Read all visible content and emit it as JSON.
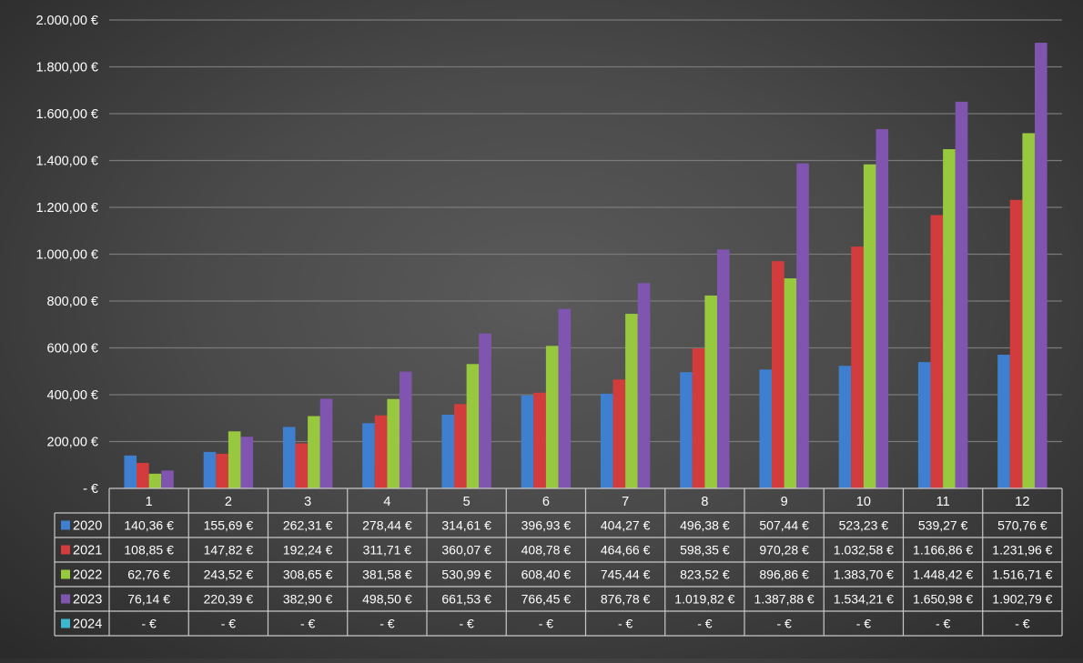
{
  "chart_data": {
    "type": "bar",
    "categories": [
      "1",
      "2",
      "3",
      "4",
      "5",
      "6",
      "7",
      "8",
      "9",
      "10",
      "11",
      "12"
    ],
    "ylim": [
      0,
      2000
    ],
    "y_ticks": [
      0,
      200,
      400,
      600,
      800,
      1000,
      1200,
      1400,
      1600,
      1800,
      2000
    ],
    "y_tick_labels": [
      "-  €",
      "200,00 €",
      "400,00 €",
      "600,00 €",
      "800,00 €",
      "1.000,00 €",
      "1.200,00 €",
      "1.400,00 €",
      "1.600,00 €",
      "1.800,00 €",
      "2.000,00 €"
    ],
    "grid": true,
    "legend_placement": "data-table",
    "series": [
      {
        "name": "2020",
        "color": "#3f7fcf",
        "values": [
          140.36,
          155.69,
          262.31,
          278.44,
          314.61,
          396.93,
          404.27,
          496.38,
          507.44,
          523.23,
          539.27,
          570.76
        ],
        "labels": [
          "140,36 €",
          "155,69 €",
          "262,31 €",
          "278,44 €",
          "314,61 €",
          "396,93 €",
          "404,27 €",
          "496,38 €",
          "507,44 €",
          "523,23 €",
          "539,27 €",
          "570,76 €"
        ]
      },
      {
        "name": "2021",
        "color": "#d23c3c",
        "values": [
          108.85,
          147.82,
          192.24,
          311.71,
          360.07,
          408.78,
          464.66,
          598.35,
          970.28,
          1032.58,
          1166.86,
          1231.96
        ],
        "labels": [
          "108,85 €",
          "147,82 €",
          "192,24 €",
          "311,71 €",
          "360,07 €",
          "408,78 €",
          "464,66 €",
          "598,35 €",
          "970,28 €",
          "1.032,58 €",
          "1.166,86 €",
          "1.231,96 €"
        ]
      },
      {
        "name": "2022",
        "color": "#97c83e",
        "values": [
          62.76,
          243.52,
          308.65,
          381.58,
          530.99,
          608.4,
          745.44,
          823.52,
          896.86,
          1383.7,
          1448.42,
          1516.71
        ],
        "labels": [
          "62,76 €",
          "243,52 €",
          "308,65 €",
          "381,58 €",
          "530,99 €",
          "608,40 €",
          "745,44 €",
          "823,52 €",
          "896,86 €",
          "1.383,70 €",
          "1.448,42 €",
          "1.516,71 €"
        ]
      },
      {
        "name": "2023",
        "color": "#7f55b0",
        "values": [
          76.14,
          220.39,
          382.9,
          498.5,
          661.53,
          766.45,
          876.78,
          1019.82,
          1387.88,
          1534.21,
          1650.98,
          1902.79
        ],
        "labels": [
          "76,14 €",
          "220,39 €",
          "382,90 €",
          "498,50 €",
          "661,53 €",
          "766,45 €",
          "876,78 €",
          "1.019,82 €",
          "1.387,88 €",
          "1.534,21 €",
          "1.650,98 €",
          "1.902,79 €"
        ]
      },
      {
        "name": "2024",
        "color": "#3fb6cf",
        "values": [
          0,
          0,
          0,
          0,
          0,
          0,
          0,
          0,
          0,
          0,
          0,
          0
        ],
        "labels": [
          "-  €",
          "-  €",
          "-  €",
          "-  €",
          "-  €",
          "-  €",
          "-  €",
          "-  €",
          "-  €",
          "-  €",
          "-  €",
          "-  €"
        ]
      }
    ]
  }
}
